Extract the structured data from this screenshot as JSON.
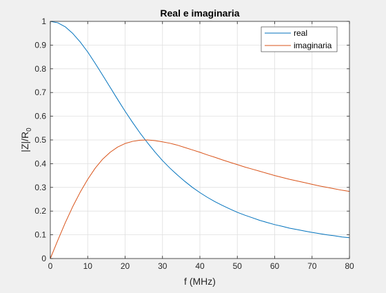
{
  "chart_data": {
    "type": "line",
    "title": "Real e imaginaria",
    "xlabel": "f (MHz)",
    "ylabel": "|Z|/R",
    "ylabel_subscript": "0",
    "xlim": [
      0,
      80
    ],
    "ylim": [
      0,
      1
    ],
    "xticks": [
      0,
      10,
      20,
      30,
      40,
      50,
      60,
      70,
      80
    ],
    "yticks": [
      0,
      0.1,
      0.2,
      0.3,
      0.4,
      0.5,
      0.6,
      0.7,
      0.8,
      0.9,
      1
    ],
    "grid": true,
    "legend_position": "top-right",
    "x": [
      0,
      2,
      4,
      6,
      8,
      10,
      12,
      14,
      16,
      18,
      20,
      22,
      24,
      26,
      28,
      30,
      32,
      34,
      36,
      38,
      40,
      42,
      44,
      46,
      48,
      50,
      52,
      54,
      56,
      58,
      60,
      62,
      64,
      66,
      68,
      70,
      72,
      74,
      76,
      78,
      80
    ],
    "series": [
      {
        "name": "real",
        "color": "#0072BD",
        "values": [
          1.0,
          0.994,
          0.977,
          0.949,
          0.913,
          0.871,
          0.823,
          0.773,
          0.722,
          0.671,
          0.621,
          0.574,
          0.529,
          0.488,
          0.449,
          0.413,
          0.381,
          0.352,
          0.325,
          0.3,
          0.278,
          0.258,
          0.24,
          0.224,
          0.209,
          0.195,
          0.183,
          0.172,
          0.161,
          0.152,
          0.143,
          0.136,
          0.128,
          0.122,
          0.116,
          0.11,
          0.105,
          0.1,
          0.096,
          0.091,
          0.088
        ]
      },
      {
        "name": "imaginaria",
        "color": "#D95319",
        "values": [
          0.0,
          0.077,
          0.151,
          0.219,
          0.28,
          0.334,
          0.381,
          0.419,
          0.448,
          0.47,
          0.485,
          0.494,
          0.499,
          0.5,
          0.497,
          0.492,
          0.486,
          0.478,
          0.468,
          0.458,
          0.448,
          0.437,
          0.427,
          0.416,
          0.406,
          0.396,
          0.386,
          0.377,
          0.368,
          0.359,
          0.35,
          0.342,
          0.334,
          0.327,
          0.32,
          0.313,
          0.306,
          0.3,
          0.294,
          0.288,
          0.283
        ]
      }
    ]
  }
}
